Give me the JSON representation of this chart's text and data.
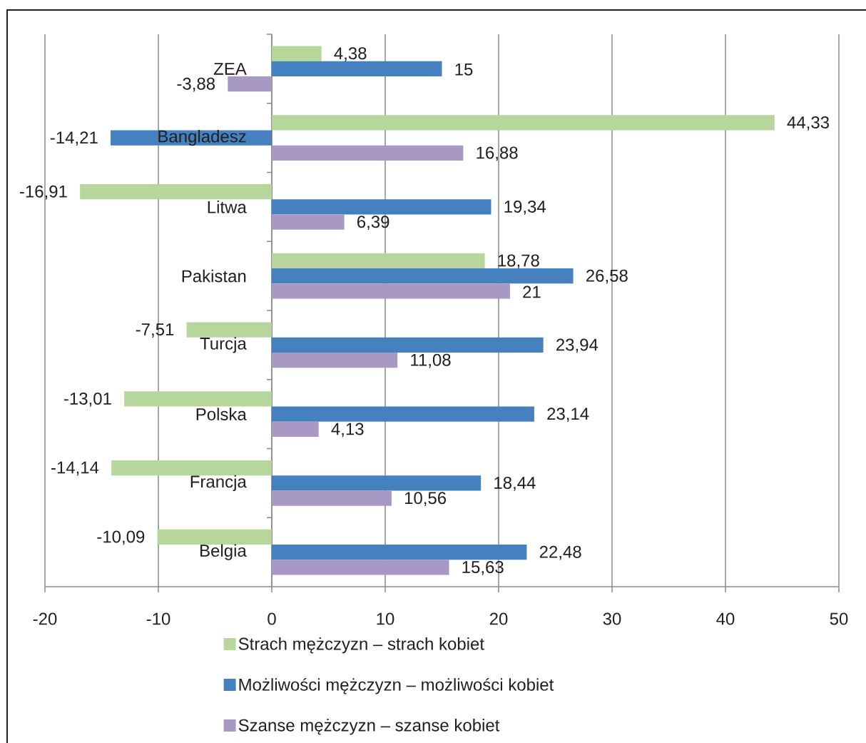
{
  "chart_data": {
    "type": "bar",
    "orientation": "horizontal",
    "categories": [
      "ZEA",
      "Bangladesz",
      "Litwa",
      "Pakistan",
      "Turcja",
      "Polska",
      "Francja",
      "Belgia"
    ],
    "series": [
      {
        "name": "Strach mężczyzn – strach kobiet",
        "color": "#b7d69c",
        "values": [
          4.38,
          44.33,
          -16.91,
          18.78,
          -7.51,
          -13.01,
          -14.14,
          -10.09
        ],
        "value_labels": [
          "4,38",
          "44,33",
          "-16,91",
          "18,78",
          "-7,51",
          "-13,01",
          "-14,14",
          "-10,09"
        ]
      },
      {
        "name": "Możliwości mężczyzn – możliwości kobiet",
        "color": "#4580bf",
        "values": [
          15,
          -14.21,
          19.34,
          26.58,
          23.94,
          23.14,
          18.44,
          22.48
        ],
        "value_labels": [
          "15",
          "-14,21",
          "19,34",
          "26,58",
          "23,94",
          "23,14",
          "18,44",
          "22,48"
        ]
      },
      {
        "name": "Szanse mężczyzn – szanse kobiet",
        "color": "#a898c4",
        "values": [
          -3.88,
          16.88,
          6.39,
          21,
          11.08,
          4.13,
          10.56,
          15.63
        ],
        "value_labels": [
          "-3,88",
          "16,88",
          "6,39",
          "21",
          "11,08",
          "4,13",
          "10,56",
          "15,63"
        ]
      }
    ],
    "xlim": [
      -20,
      50
    ],
    "xticks": [
      -20,
      -10,
      0,
      10,
      20,
      30,
      40,
      50
    ],
    "grid": "x",
    "legend": "bottom"
  }
}
